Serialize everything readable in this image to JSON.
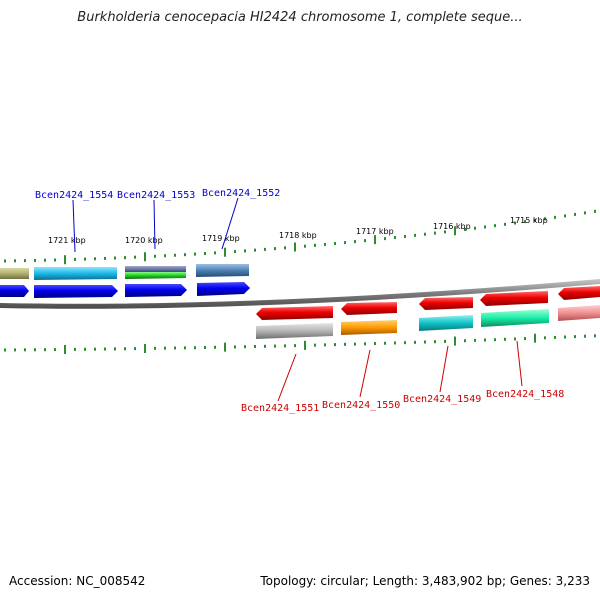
{
  "title": "Burkholderia cenocepacia HI2424 chromosome 1, complete seque...",
  "footer": {
    "accession": "Accession: NC_008542",
    "summary": "Topology: circular; Length: 3,483,902 bp; Genes: 3,233"
  },
  "kbp_ticks": [
    {
      "label": "1721 kbp"
    },
    {
      "label": "1720 kbp"
    },
    {
      "label": "1719 kbp"
    },
    {
      "label": "1718 kbp"
    },
    {
      "label": "1717 kbp"
    },
    {
      "label": "1716 kbp"
    },
    {
      "label": "1715 kbp"
    }
  ],
  "gene_labels_top": [
    {
      "name": "Bcen2424_1554",
      "color": "#0000cc"
    },
    {
      "name": "Bcen2424_1553",
      "color": "#0000cc"
    },
    {
      "name": "Bcen2424_1552",
      "color": "#0000cc"
    }
  ],
  "gene_labels_bottom": [
    {
      "name": "Bcen2424_1551",
      "color": "#cc0000"
    },
    {
      "name": "Bcen2424_1550",
      "color": "#cc0000"
    },
    {
      "name": "Bcen2424_1549",
      "color": "#cc0000"
    },
    {
      "name": "Bcen2424_1548",
      "color": "#cc0000"
    }
  ],
  "colors": {
    "forward_strand": "#0000ee",
    "reverse_strand": "#ee0000",
    "backbone": "#808080",
    "ticks": "#2e8b2e"
  }
}
